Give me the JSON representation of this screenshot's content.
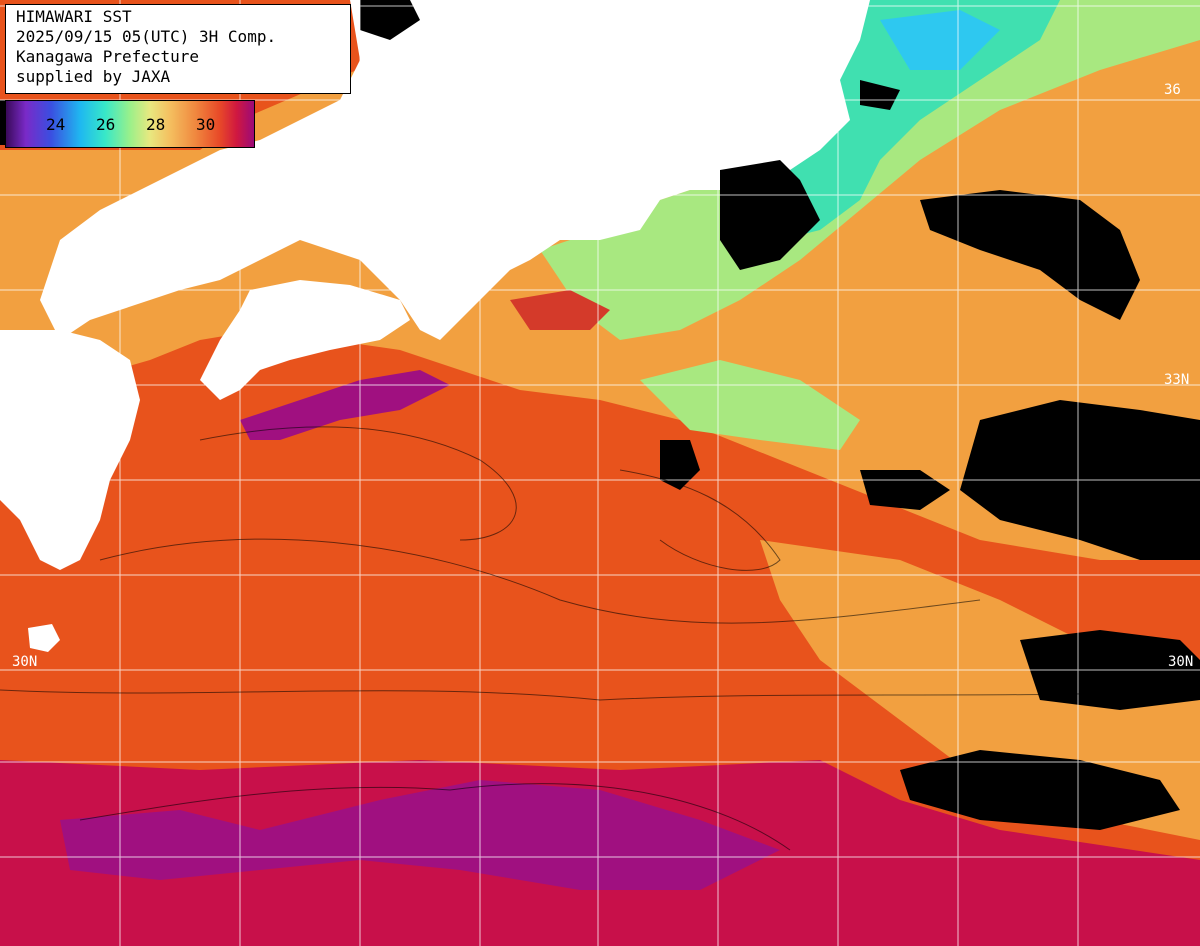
{
  "title_box": {
    "line1": "HIMAWARI SST",
    "line2": "2025/09/15 05(UTC) 3H Comp.",
    "line3": "Kanagawa Prefecture",
    "line4": "supplied by JAXA"
  },
  "colorbar": {
    "ticks": [
      "24",
      "26",
      "28",
      "30"
    ]
  },
  "lat_labels": {
    "top_right": "36",
    "mid_right": "33N",
    "bottom_left": "30N",
    "bottom_right": "30N"
  },
  "colors": {
    "warm_sea": "#e8531c",
    "hot_sea": "#c8104a",
    "hottest_sea": "#a01080",
    "mild_sea": "#f2a040",
    "cool_sea": "#a8e880",
    "cold_sea": "#40e0b0",
    "land": "#ffffff",
    "cloud": "#000000",
    "grid": "#ffffff"
  }
}
